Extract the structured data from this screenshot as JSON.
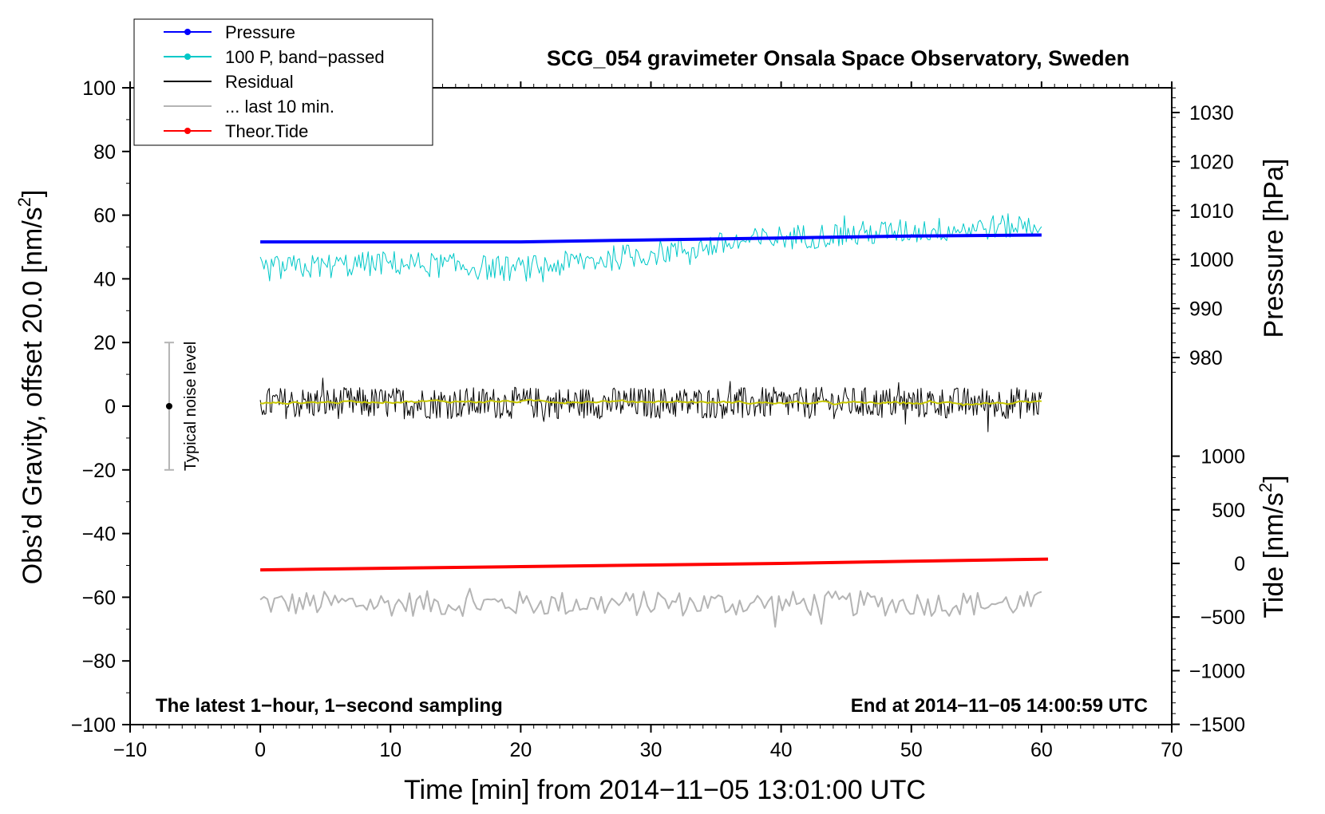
{
  "chart_data": {
    "type": "line",
    "title": "SCG_054 gravimeter Onsala Space Observatory, Sweden",
    "xlabel": "Time [min] from 2014−11−05 13:01:00 UTC",
    "ylabel": "Obs’d Gravity, offset 20.0 [nm/s",
    "ylabel_sup": "2",
    "ylabel_close": "]",
    "y2label": "Pressure [hPa]",
    "y3label": "Tide [nm/s",
    "y3label_sup": "2",
    "y3label_close": "]",
    "xlim": [
      -10,
      70
    ],
    "ylim": [
      -100,
      100
    ],
    "x_ticks": [
      "−10",
      "0",
      "10",
      "20",
      "30",
      "40",
      "50",
      "60",
      "70"
    ],
    "y_ticks": [
      "−100",
      "−80",
      "−60",
      "−40",
      "−20",
      "0",
      "20",
      "40",
      "60",
      "80",
      "100"
    ],
    "pressure_ticks": [
      "980",
      "990",
      "1000",
      "1010",
      "1020",
      "1030"
    ],
    "tide_ticks": [
      "−1500",
      "−1000",
      "−500",
      "0",
      "500",
      "1000"
    ],
    "left_annotation": "The latest 1−hour, 1−second sampling",
    "right_annotation": "End at 2014−11−05 14:00:59 UTC",
    "noise_label": "Typical noise level",
    "noise_bar": {
      "x": -7,
      "center": 0,
      "low": -20,
      "high": 20
    },
    "legend": [
      {
        "label": "Pressure",
        "color": "#0000ff",
        "marker": true
      },
      {
        "label": "100 P, band−passed",
        "color": "#00c8c8",
        "marker": true
      },
      {
        "label": "Residual",
        "color": "#000000",
        "marker": false
      },
      {
        "label": "... last 10 min.",
        "color": "#b4b4b4",
        "marker": false
      },
      {
        "label": "Theor.Tide",
        "color": "#ff0000",
        "marker": true
      }
    ],
    "series": [
      {
        "name": "Pressure",
        "axis": "pressure_hPa",
        "color": "#0000ff",
        "x": [
          0,
          10,
          20,
          30,
          40,
          50,
          60
        ],
        "y": [
          1003.6,
          1003.6,
          1003.6,
          1004.0,
          1004.4,
          1004.8,
          1005.0
        ]
      },
      {
        "name": "100 P, band−passed",
        "axis": "gravity",
        "color": "#00c8c8",
        "x": [
          0,
          10,
          20,
          30,
          40,
          50,
          60
        ],
        "y": [
          43,
          45,
          43,
          48,
          53,
          55,
          57
        ],
        "noise_amplitude": 4
      },
      {
        "name": "Residual",
        "axis": "gravity",
        "color": "#000000",
        "x": [
          0,
          10,
          20,
          30,
          40,
          50,
          60
        ],
        "y": [
          1,
          1,
          1,
          1,
          1,
          1,
          1
        ],
        "noise_amplitude": 5
      },
      {
        "name": "smoothed residual",
        "axis": "gravity",
        "color": "#c8c800",
        "x": [
          0,
          10,
          20,
          30,
          40,
          50,
          60
        ],
        "y": [
          1,
          1.5,
          1.5,
          1.5,
          1,
          1,
          1
        ],
        "noise_amplitude": 1
      },
      {
        "name": "... last 10 min.",
        "axis": "gravity",
        "color": "#b4b4b4",
        "x": [
          0,
          10,
          20,
          30,
          40,
          50,
          60
        ],
        "y": [
          -62,
          -62,
          -62,
          -62,
          -62,
          -62,
          -62
        ],
        "noise_amplitude": 4
      },
      {
        "name": "Theor.Tide",
        "axis": "tide_nm_s2",
        "color": "#ff0000",
        "x": [
          0,
          10,
          20,
          30,
          40,
          50,
          60.5
        ],
        "y": [
          -60,
          -45,
          -30,
          -15,
          0,
          20,
          40
        ]
      }
    ]
  }
}
